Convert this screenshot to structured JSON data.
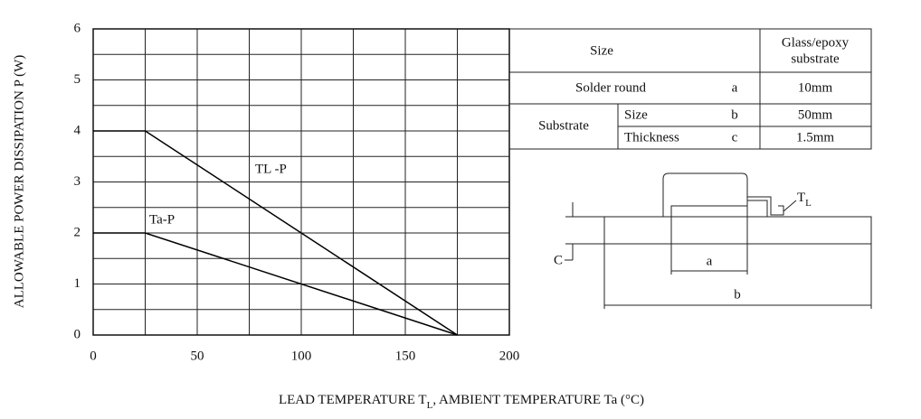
{
  "chart_data": {
    "type": "line",
    "ylabel": "ALLOWABLE POWER DISSIPATION P (W)",
    "xlabel_parts": [
      "LEAD TEMPERATURE T",
      "L",
      ", AMBIENT TEMPERATURE Ta (°C)"
    ],
    "x": [
      0,
      25,
      175
    ],
    "series": [
      {
        "name": "TL -P",
        "color": "#000000",
        "values": [
          4,
          4,
          0
        ]
      },
      {
        "name": "Ta-P",
        "color": "#000000",
        "values": [
          2,
          2,
          0
        ]
      }
    ],
    "xlim": [
      0,
      200
    ],
    "ylim": [
      0,
      6
    ],
    "xticks": [
      0,
      50,
      100,
      150,
      200
    ],
    "yticks": [
      0,
      1,
      2,
      3,
      4,
      5,
      6
    ],
    "xgrid": [
      0,
      25,
      50,
      75,
      100,
      125,
      150,
      175,
      200
    ],
    "ygrid": [
      0,
      0.5,
      1,
      1.5,
      2,
      2.5,
      3,
      3.5,
      4,
      4.5,
      5,
      5.5,
      6
    ],
    "grid": true
  },
  "table": {
    "header": [
      "Size",
      "Glass/epoxy",
      "substrate"
    ],
    "rows": [
      [
        "Solder round",
        "a",
        "10mm"
      ],
      [
        "Substrate",
        "Size",
        "b",
        "50mm"
      ],
      [
        "Thickness",
        "c",
        "1.5mm"
      ]
    ]
  },
  "diagram": {
    "a": "a",
    "b": "b",
    "c": "C",
    "tl_parts": [
      "T",
      "L"
    ]
  }
}
